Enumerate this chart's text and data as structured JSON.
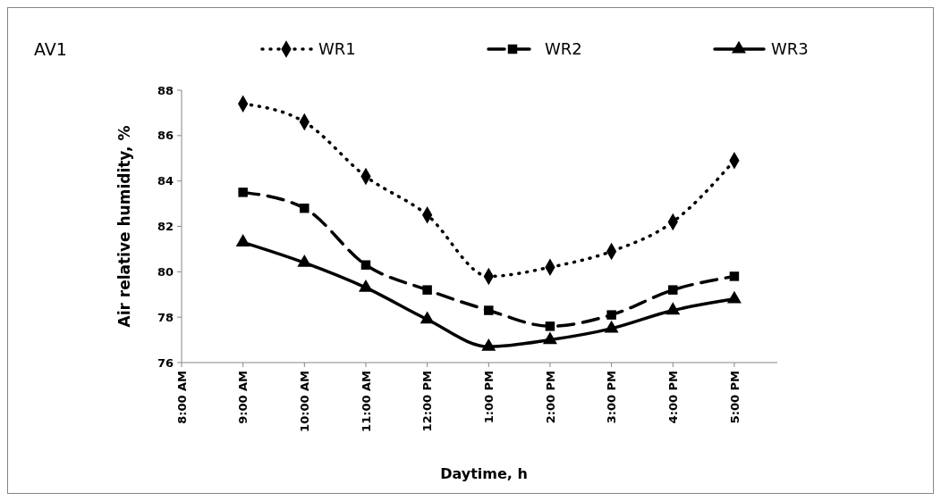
{
  "chart_data": {
    "type": "line",
    "title": "AV1",
    "xlabel": "Daytime, h",
    "ylabel": "Air relative humidity, %",
    "x": [
      9,
      10,
      11,
      12,
      13,
      14,
      15,
      16,
      17
    ],
    "xlim": [
      8,
      17.7
    ],
    "xticks": [
      {
        "value": 8,
        "label": "8:00 AM"
      },
      {
        "value": 9,
        "label": "9:00 AM"
      },
      {
        "value": 10,
        "label": "10:00 AM"
      },
      {
        "value": 11,
        "label": "11:00 AM"
      },
      {
        "value": 12,
        "label": "12:00 PM"
      },
      {
        "value": 13,
        "label": "1:00 PM"
      },
      {
        "value": 14,
        "label": "2:00 PM"
      },
      {
        "value": 15,
        "label": "3:00 PM"
      },
      {
        "value": 16,
        "label": "4:00 PM"
      },
      {
        "value": 17,
        "label": "5:00 PM"
      }
    ],
    "ylim": [
      76,
      88
    ],
    "yticks": [
      76,
      78,
      80,
      82,
      84,
      86,
      88
    ],
    "legend": "top",
    "grid": false,
    "series": [
      {
        "name": "WR1",
        "color": "#000000",
        "line_style": "dotted",
        "marker": "diamond",
        "values": [
          87.4,
          86.6,
          84.2,
          82.5,
          79.8,
          80.2,
          80.9,
          82.2,
          84.9
        ]
      },
      {
        "name": "WR2",
        "color": "#000000",
        "line_style": "dashed",
        "marker": "square",
        "values": [
          83.5,
          82.8,
          80.3,
          79.2,
          78.3,
          77.6,
          78.1,
          79.2,
          79.8
        ]
      },
      {
        "name": "WR3",
        "color": "#000000",
        "line_style": "solid",
        "marker": "triangle",
        "values": [
          81.3,
          80.4,
          79.3,
          77.9,
          76.7,
          77.0,
          77.5,
          78.3,
          78.8
        ]
      }
    ]
  }
}
